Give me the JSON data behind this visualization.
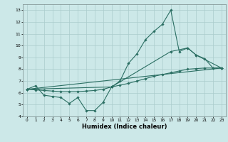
{
  "xlabel": "Humidex (Indice chaleur)",
  "ylabel": "",
  "bg_color": "#cce8e8",
  "grid_color": "#aacccc",
  "line_color": "#2a6e62",
  "xlim": [
    -0.5,
    23.5
  ],
  "ylim": [
    4,
    13.5
  ],
  "yticks": [
    4,
    5,
    6,
    7,
    8,
    9,
    10,
    11,
    12,
    13
  ],
  "xticks": [
    0,
    1,
    2,
    3,
    4,
    5,
    6,
    7,
    8,
    9,
    10,
    11,
    12,
    13,
    14,
    15,
    16,
    17,
    18,
    19,
    20,
    21,
    22,
    23
  ],
  "lines": [
    {
      "x": [
        0,
        1,
        2,
        3,
        4,
        5,
        6,
        7,
        8,
        9,
        10,
        11,
        12,
        13,
        14,
        15,
        16,
        17,
        18,
        19,
        20,
        21,
        22,
        23
      ],
      "y": [
        6.3,
        6.6,
        5.8,
        5.7,
        5.6,
        5.1,
        5.6,
        4.5,
        4.5,
        5.2,
        6.5,
        7.0,
        8.5,
        9.3,
        10.5,
        11.2,
        11.8,
        13.0,
        9.5,
        9.8,
        9.2,
        8.9,
        8.1,
        8.1
      ]
    },
    {
      "x": [
        0,
        1,
        2,
        3,
        4,
        5,
        6,
        7,
        8,
        9,
        10,
        11,
        12,
        13,
        14,
        15,
        16,
        17,
        18,
        19,
        20,
        21,
        22,
        23
      ],
      "y": [
        6.3,
        6.25,
        6.2,
        6.15,
        6.1,
        6.1,
        6.1,
        6.15,
        6.2,
        6.3,
        6.5,
        6.65,
        6.8,
        7.0,
        7.2,
        7.4,
        7.55,
        7.7,
        7.85,
        8.0,
        8.05,
        8.1,
        8.1,
        8.1
      ]
    },
    {
      "x": [
        0,
        23
      ],
      "y": [
        6.3,
        8.1
      ]
    },
    {
      "x": [
        0,
        10,
        17,
        19,
        20,
        23
      ],
      "y": [
        6.3,
        6.5,
        9.5,
        9.8,
        9.2,
        8.1
      ]
    }
  ]
}
